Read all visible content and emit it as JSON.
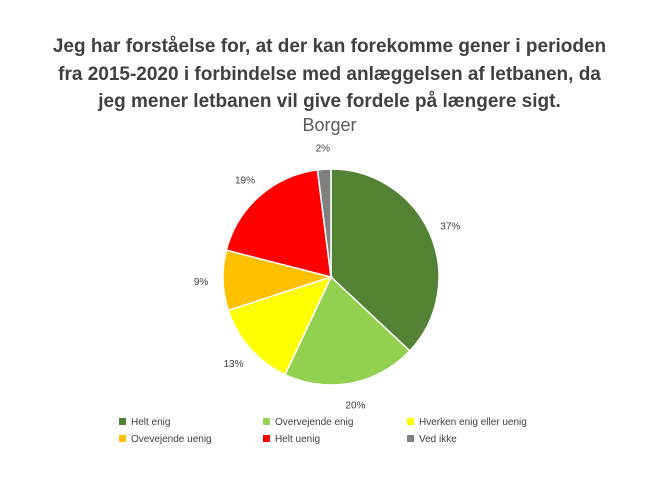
{
  "chart_data": {
    "type": "pie",
    "title": "Jeg har forståelse for, at der kan forekomme gener i perioden fra 2015-2020 i forbindelse med anlæggelsen af letbanen, da jeg mener letbanen vil give fordele på længere sigt.",
    "title_lines": [
      "Jeg har forståelse for, at der kan forekomme gener i perioden",
      "fra 2015-2020 i forbindelse med anlæggelsen af letbanen, da",
      "jeg mener letbanen vil give fordele på længere sigt."
    ],
    "subtitle": "Borger",
    "categories": [
      "Helt enig",
      "Overvejende enig",
      "Hverken enig eller uenig",
      "Ovevejende uenig",
      "Helt uenig",
      "Ved ikke"
    ],
    "values": [
      37,
      20,
      13,
      9,
      19,
      2
    ],
    "value_labels": [
      "37%",
      "20%",
      "13%",
      "9%",
      "19%",
      "2%"
    ],
    "colors": [
      "#548235",
      "#92D050",
      "#FFFF00",
      "#FFC000",
      "#FF0000",
      "#808080"
    ],
    "legend_position": "bottom"
  }
}
